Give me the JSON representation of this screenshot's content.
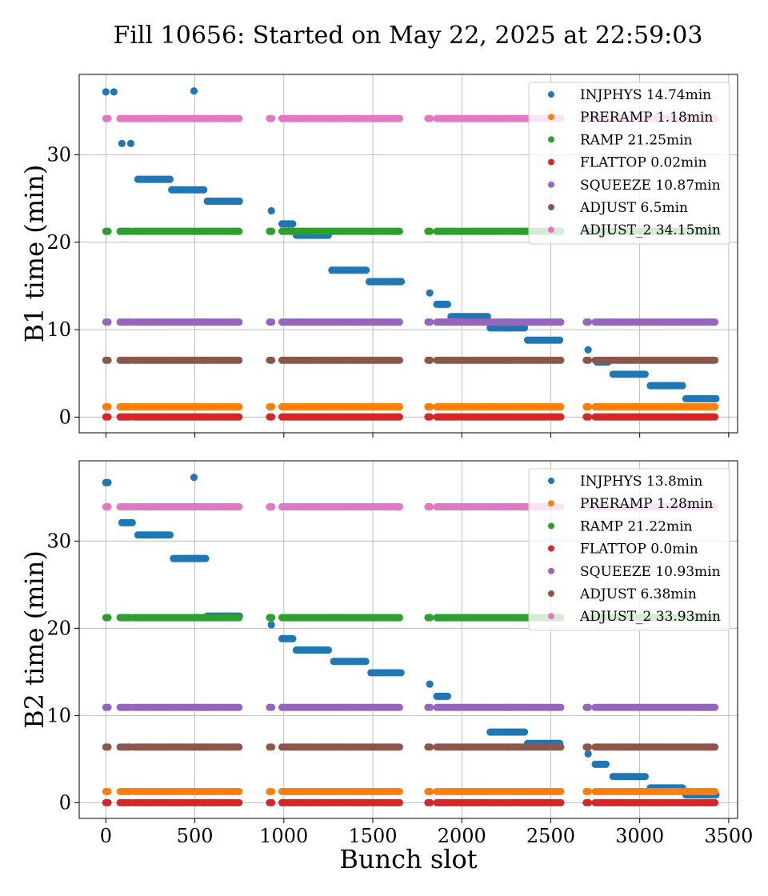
{
  "title": "Fill 10656: Started on May 22, 2025 at 22:59:03",
  "chart_data": [
    {
      "type": "scatter",
      "ylabel": "B1 time (min)",
      "xlabel": "",
      "xlim": [
        -150,
        3550
      ],
      "ylim": [
        -1.8,
        39.2
      ],
      "xticks": [
        0,
        500,
        1000,
        1500,
        2000,
        2500,
        3000,
        3500
      ],
      "yticks": [
        0,
        10,
        20,
        30
      ],
      "grid": true,
      "legend_position": "top-right",
      "series": [
        {
          "name": "INJPHYS",
          "legend": "INJPHYS 14.74min",
          "color": "#1f77b4",
          "kind": "injection",
          "points": [
            [
              0,
              37.2
            ],
            [
              45,
              37.2
            ],
            [
              90,
              31.3
            ],
            [
              140,
              31.3
            ],
            [
              495,
              37.3
            ],
            [
              930,
              23.6
            ],
            [
              1820,
              14.2
            ],
            [
              2710,
              7.7
            ]
          ],
          "segments": [
            [
              180,
              370,
              27.2
            ],
            [
              370,
              560,
              26.0
            ],
            [
              570,
              750,
              24.7
            ],
            [
              990,
              1050,
              22.1
            ],
            [
              1070,
              1260,
              20.8
            ],
            [
              1270,
              1470,
              16.8
            ],
            [
              1480,
              1660,
              15.5
            ],
            [
              1860,
              1930,
              12.9
            ],
            [
              1940,
              2150,
              11.5
            ],
            [
              2160,
              2360,
              10.2
            ],
            [
              2370,
              2560,
              8.8
            ],
            [
              2760,
              2820,
              6.3
            ],
            [
              2850,
              3040,
              4.9
            ],
            [
              3060,
              3250,
              3.6
            ],
            [
              3260,
              3430,
              2.1
            ]
          ]
        },
        {
          "name": "PRERAMP",
          "legend": "PRERAMP 1.18min",
          "color": "#ff7f0e",
          "value": 1.18
        },
        {
          "name": "RAMP",
          "legend": "RAMP 21.25min",
          "color": "#2ca02c",
          "value": 21.25
        },
        {
          "name": "FLATTOP",
          "legend": "FLATTOP 0.02min",
          "color": "#d62728",
          "value": 0.02
        },
        {
          "name": "SQUEEZE",
          "legend": "SQUEEZE 10.87min",
          "color": "#9467bd",
          "value": 10.87
        },
        {
          "name": "ADJUST",
          "legend": "ADJUST 6.5min",
          "color": "#8c564b",
          "value": 6.5
        },
        {
          "name": "ADJUST_2",
          "legend": "ADJUST_2 34.15min",
          "color": "#e377c2",
          "value": 34.15
        }
      ],
      "filled_ranges": [
        [
          0,
          20
        ],
        [
          80,
          150
        ],
        [
          160,
          750
        ],
        [
          920,
          940
        ],
        [
          990,
          1660
        ],
        [
          1810,
          1830
        ],
        [
          1860,
          2560
        ],
        [
          2700,
          2720
        ],
        [
          2750,
          3430
        ]
      ]
    },
    {
      "type": "scatter",
      "ylabel": "B2 time (min)",
      "xlabel": "Bunch slot",
      "xlim": [
        -150,
        3550
      ],
      "ylim": [
        -1.8,
        39.2
      ],
      "xticks": [
        0,
        500,
        1000,
        1500,
        2000,
        2500,
        3000,
        3500
      ],
      "yticks": [
        0,
        10,
        20,
        30
      ],
      "grid": true,
      "legend_position": "top-right",
      "series": [
        {
          "name": "INJPHYS",
          "legend": "INJPHYS 13.8min",
          "color": "#1f77b4",
          "kind": "injection",
          "points": [
            [
              0,
              36.7
            ],
            [
              90,
              32.1
            ],
            [
              495,
              37.3
            ],
            [
              930,
              20.4
            ],
            [
              1820,
              13.6
            ],
            [
              2710,
              5.6
            ]
          ],
          "segments": [
            [
              0,
              20,
              36.7
            ],
            [
              100,
              150,
              32.1
            ],
            [
              180,
              370,
              30.7
            ],
            [
              380,
              560,
              28.0
            ],
            [
              570,
              750,
              21.4
            ],
            [
              990,
              1060,
              18.8
            ],
            [
              1070,
              1260,
              17.5
            ],
            [
              1280,
              1470,
              16.2
            ],
            [
              1490,
              1660,
              14.9
            ],
            [
              1860,
              1930,
              12.2
            ],
            [
              2160,
              2360,
              8.1
            ],
            [
              2370,
              2560,
              6.8
            ],
            [
              2750,
              2820,
              4.4
            ],
            [
              2850,
              3040,
              3.0
            ],
            [
              3060,
              3250,
              1.7
            ],
            [
              3260,
              3430,
              0.9
            ]
          ]
        },
        {
          "name": "PRERAMP",
          "legend": "PRERAMP 1.28min",
          "color": "#ff7f0e",
          "value": 1.28
        },
        {
          "name": "RAMP",
          "legend": "RAMP 21.22min",
          "color": "#2ca02c",
          "value": 21.22
        },
        {
          "name": "FLATTOP",
          "legend": "FLATTOP 0.0min",
          "color": "#d62728",
          "value": 0.0
        },
        {
          "name": "SQUEEZE",
          "legend": "SQUEEZE 10.93min",
          "color": "#9467bd",
          "value": 10.93
        },
        {
          "name": "ADJUST",
          "legend": "ADJUST 6.38min",
          "color": "#8c564b",
          "value": 6.38
        },
        {
          "name": "ADJUST_2",
          "legend": "ADJUST_2 33.93min",
          "color": "#e377c2",
          "value": 33.93
        }
      ],
      "filled_ranges": [
        [
          0,
          20
        ],
        [
          80,
          150
        ],
        [
          160,
          750
        ],
        [
          920,
          940
        ],
        [
          990,
          1660
        ],
        [
          1810,
          1830
        ],
        [
          1860,
          2560
        ],
        [
          2700,
          2720
        ],
        [
          2750,
          3430
        ]
      ]
    }
  ]
}
